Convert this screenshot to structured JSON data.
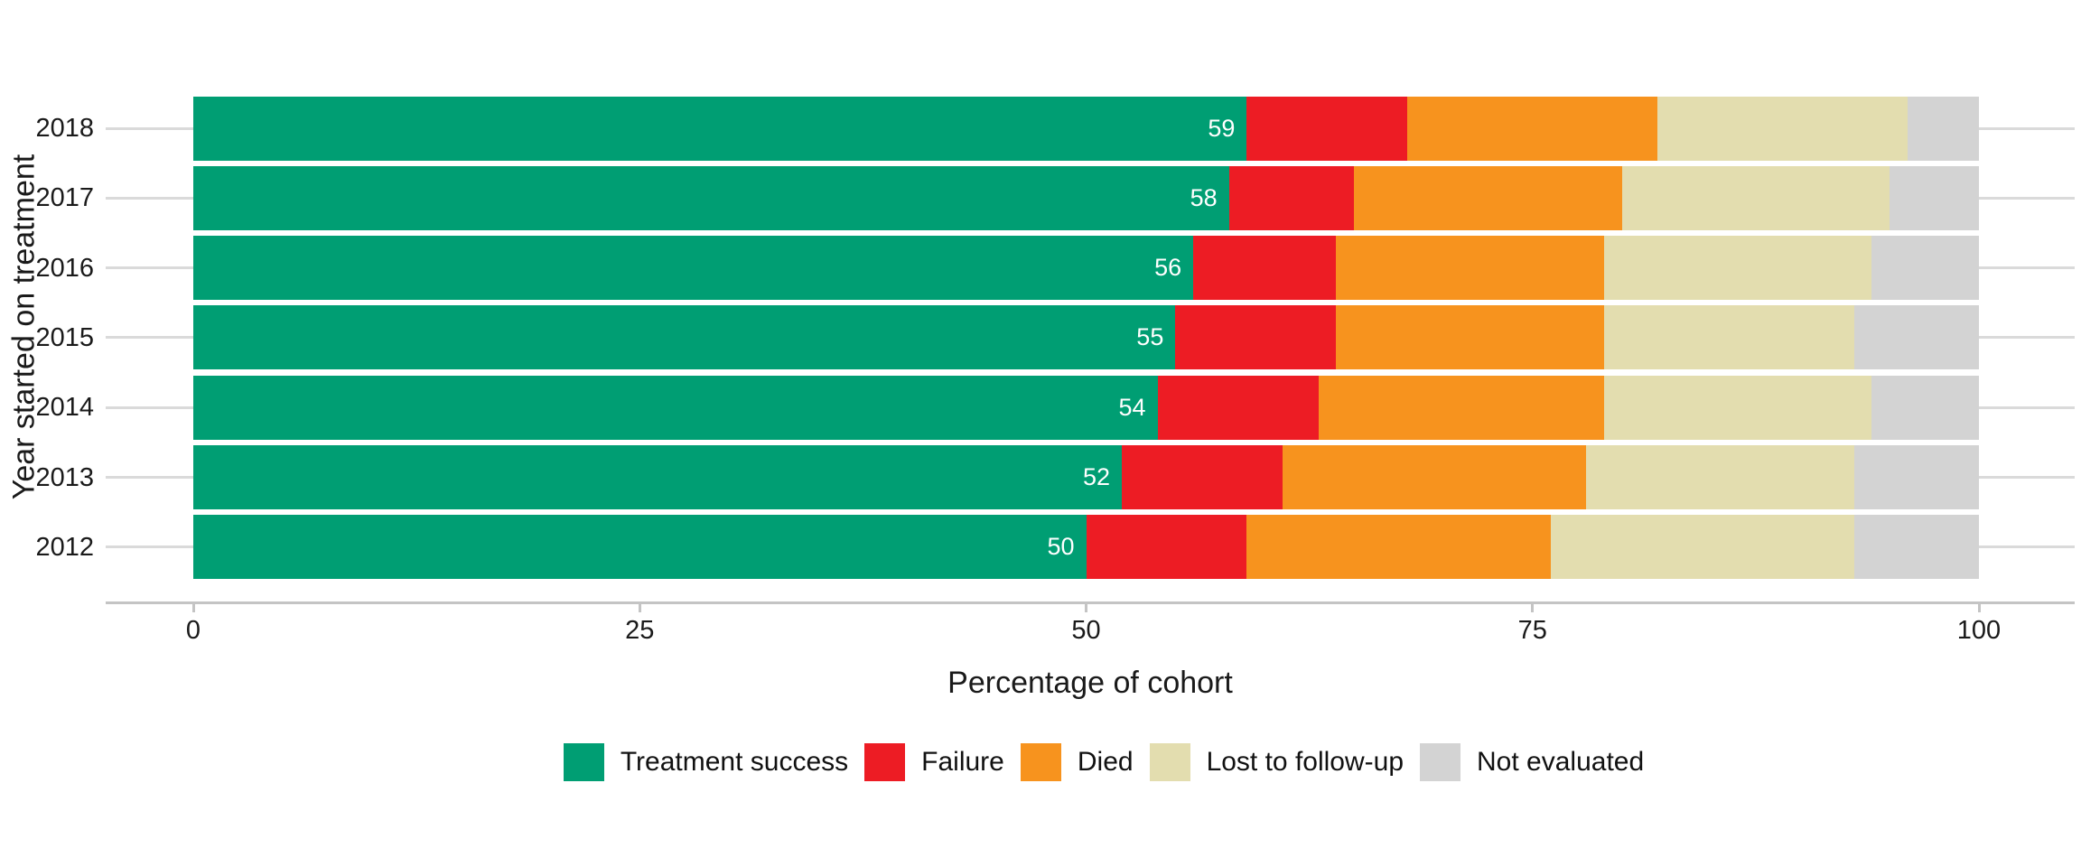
{
  "chart_data": {
    "type": "bar",
    "variant": "horizontal-stacked-percentage",
    "title": "",
    "xlabel": "Percentage of cohort",
    "ylabel": "Year started on treatment",
    "categories": [
      "2018",
      "2017",
      "2016",
      "2015",
      "2014",
      "2013",
      "2012"
    ],
    "series": [
      {
        "name": "Treatment success",
        "color": "#009E73",
        "values": [
          59,
          58,
          56,
          55,
          54,
          52,
          50
        ]
      },
      {
        "name": "Failure",
        "color": "#ED1C24",
        "values": [
          9,
          7,
          8,
          9,
          9,
          9,
          9
        ]
      },
      {
        "name": "Died",
        "color": "#F7931E",
        "values": [
          14,
          15,
          15,
          15,
          16,
          17,
          17
        ]
      },
      {
        "name": "Lost to follow-up",
        "color": "#E3DDAF",
        "values": [
          14,
          15,
          15,
          14,
          15,
          15,
          17
        ]
      },
      {
        "name": "Not evaluated",
        "color": "#D3D3D3",
        "values": [
          4,
          5,
          6,
          7,
          6,
          7,
          7
        ]
      }
    ],
    "bar_value_labels": {
      "series_shown": "Treatment success",
      "values": [
        59,
        58,
        56,
        55,
        54,
        52,
        50
      ],
      "color": "#FFFFFF"
    },
    "x_ticks": [
      0,
      25,
      50,
      75,
      100
    ],
    "xlim": [
      0,
      100
    ],
    "grid": "horizontal-row-lines-only",
    "legend_position": "bottom",
    "style_colors": {
      "gridline": "#DADADA",
      "axis_line": "#C4C4C4",
      "text": "#1A1A1A",
      "background": "#FFFFFF"
    }
  }
}
